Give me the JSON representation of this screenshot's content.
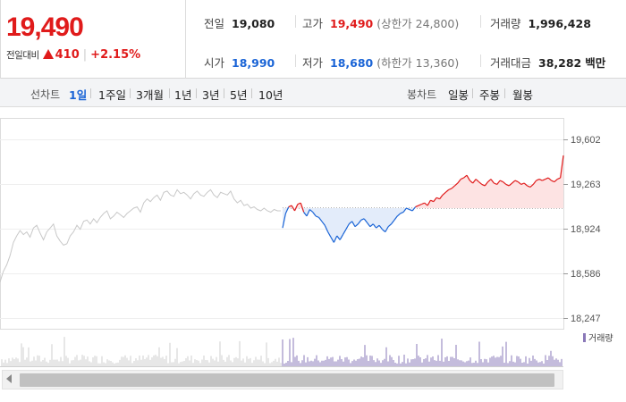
{
  "quote": {
    "price": "19,490",
    "change_label": "전일대비",
    "change_amount": "410",
    "change_percent": "+2.15%",
    "prev_close_label": "전일",
    "prev_close": "19,080",
    "high_label": "고가",
    "high": "19,490",
    "upper_limit": "(상한가 24,800)",
    "volume_label": "거래량",
    "volume": "1,996,428",
    "open_label": "시가",
    "open": "18,990",
    "low_label": "저가",
    "low": "18,680",
    "lower_limit": "(하한가 13,360)",
    "amount_label": "거래대금",
    "amount": "38,282",
    "amount_unit": "백만"
  },
  "toolbar": {
    "line_label": "선차트",
    "line_periods": [
      "1일",
      "1주일",
      "3개월",
      "1년",
      "3년",
      "5년",
      "10년"
    ],
    "active_period": "1일",
    "candle_label": "봉차트",
    "candle_periods": [
      "일봉",
      "주봉",
      "월봉"
    ]
  },
  "colors": {
    "up": "#e01b1b",
    "down": "#1a64d6",
    "prev_day": "#c8c8c8",
    "volume": "#8a78b8"
  },
  "chart_data": {
    "type": "line",
    "y_ticks": [
      "19,602",
      "19,263",
      "18,924",
      "18,586",
      "18,247"
    ],
    "ylim": [
      18247,
      19602
    ],
    "reference": 19080,
    "prev_day_series": [
      18520,
      18600,
      18650,
      18720,
      18820,
      18870,
      18910,
      18880,
      18900,
      18860,
      18930,
      18950,
      18890,
      18840,
      18900,
      18930,
      18960,
      18870,
      18830,
      18800,
      18810,
      18870,
      18900,
      18950,
      18920,
      18980,
      18990,
      18960,
      19000,
      18970,
      19010,
      19040,
      19060,
      19000,
      19020,
      19050,
      19030,
      19010,
      19040,
      19060,
      19080,
      19090,
      19050,
      19120,
      19150,
      19130,
      19160,
      19180,
      19140,
      19200,
      19210,
      19180,
      19170,
      19220,
      19190,
      19200,
      19180,
      19150,
      19190,
      19210,
      19180,
      19170,
      19200,
      19220,
      19180,
      19160,
      19200,
      19190,
      19180,
      19210,
      19150,
      19120,
      19140,
      19100,
      19110,
      19080,
      19090,
      19070,
      19060,
      19080,
      19060,
      19050,
      19070,
      19060,
      19060
    ],
    "today_series": [
      18930,
      19040,
      19090,
      19100,
      19060,
      19110,
      19120,
      19050,
      19020,
      19070,
      19050,
      19020,
      19010,
      18980,
      18950,
      18900,
      18860,
      18820,
      18870,
      18840,
      18880,
      18920,
      18960,
      18980,
      18940,
      18960,
      18990,
      19000,
      18970,
      18940,
      18960,
      18930,
      18950,
      18920,
      18900,
      18940,
      18960,
      18990,
      19020,
      19040,
      19050,
      19080,
      19070,
      19060,
      19090,
      19100,
      19110,
      19120,
      19100,
      19140,
      19130,
      19160,
      19150,
      19180,
      19200,
      19220,
      19230,
      19250,
      19270,
      19300,
      19310,
      19330,
      19290,
      19270,
      19300,
      19280,
      19260,
      19250,
      19280,
      19300,
      19270,
      19260,
      19290,
      19280,
      19260,
      19250,
      19270,
      19290,
      19280,
      19260,
      19270,
      19250,
      19240,
      19260,
      19290,
      19300,
      19290,
      19300,
      19310,
      19290,
      19280,
      19300,
      19310,
      19480
    ],
    "volume_legend": "거래량"
  }
}
